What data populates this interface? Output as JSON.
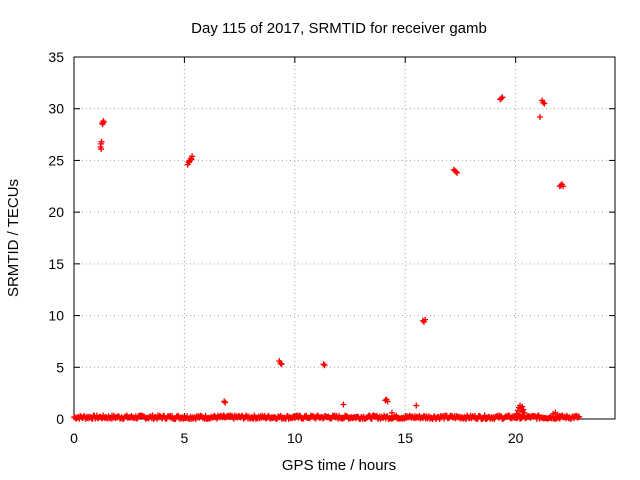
{
  "chart_data": {
    "type": "scatter",
    "title": "Day 115 of 2017, SRMTID for receiver gamb",
    "xlabel": "GPS time / hours",
    "ylabel": "SRMTID / TECUs",
    "xlim": [
      0,
      24.5
    ],
    "ylim": [
      0,
      35
    ],
    "x_ticks": [
      0,
      5,
      10,
      15,
      20
    ],
    "y_ticks": [
      0,
      5,
      10,
      15,
      20,
      25,
      30,
      35
    ],
    "grid": true,
    "marker": "+",
    "color": "#ff0000",
    "series": [
      {
        "name": "SRMTID",
        "points": [
          [
            1.2,
            26.3
          ],
          [
            1.22,
            26.6
          ],
          [
            1.25,
            26.8
          ],
          [
            1.23,
            26.1
          ],
          [
            1.28,
            28.6
          ],
          [
            1.32,
            28.8
          ],
          [
            1.35,
            28.7
          ],
          [
            1.3,
            28.5
          ],
          [
            5.15,
            24.6
          ],
          [
            5.2,
            24.8
          ],
          [
            5.25,
            25.0
          ],
          [
            5.3,
            25.2
          ],
          [
            5.35,
            25.4
          ],
          [
            5.22,
            24.9
          ],
          [
            5.32,
            25.1
          ],
          [
            6.8,
            1.7
          ],
          [
            6.85,
            1.6
          ],
          [
            9.3,
            5.6
          ],
          [
            9.35,
            5.4
          ],
          [
            9.4,
            5.3
          ],
          [
            11.3,
            5.3
          ],
          [
            11.35,
            5.2
          ],
          [
            12.2,
            1.4
          ],
          [
            14.1,
            1.8
          ],
          [
            14.15,
            1.9
          ],
          [
            14.2,
            1.7
          ],
          [
            14.4,
            0.6
          ],
          [
            15.5,
            1.3
          ],
          [
            15.8,
            9.5
          ],
          [
            15.85,
            9.4
          ],
          [
            15.9,
            9.6
          ],
          [
            17.2,
            24.1
          ],
          [
            17.25,
            24.0
          ],
          [
            17.3,
            23.9
          ],
          [
            17.35,
            23.8
          ],
          [
            19.3,
            30.9
          ],
          [
            19.35,
            31.0
          ],
          [
            19.4,
            31.1
          ],
          [
            21.1,
            29.2
          ],
          [
            21.2,
            30.8
          ],
          [
            21.25,
            30.6
          ],
          [
            21.3,
            30.5
          ],
          [
            22.0,
            22.5
          ],
          [
            22.05,
            22.6
          ],
          [
            22.1,
            22.7
          ],
          [
            22.15,
            22.5
          ],
          [
            20.05,
            0.5
          ],
          [
            20.1,
            0.8
          ],
          [
            20.15,
            1.1
          ],
          [
            20.2,
            1.3
          ],
          [
            20.25,
            1.0
          ],
          [
            20.3,
            0.7
          ],
          [
            20.35,
            0.9
          ],
          [
            20.4,
            0.6
          ],
          [
            20.2,
            0.4
          ],
          [
            20.3,
            1.2
          ],
          [
            21.7,
            0.5
          ],
          [
            21.8,
            0.6
          ],
          [
            21.9,
            0.4
          ],
          [
            22.0,
            0.3
          ]
        ],
        "baseline": {
          "x_start": 0.0,
          "x_end": 22.9,
          "step": 0.04,
          "y_typical": [
            0.0,
            0.35
          ]
        }
      }
    ]
  }
}
